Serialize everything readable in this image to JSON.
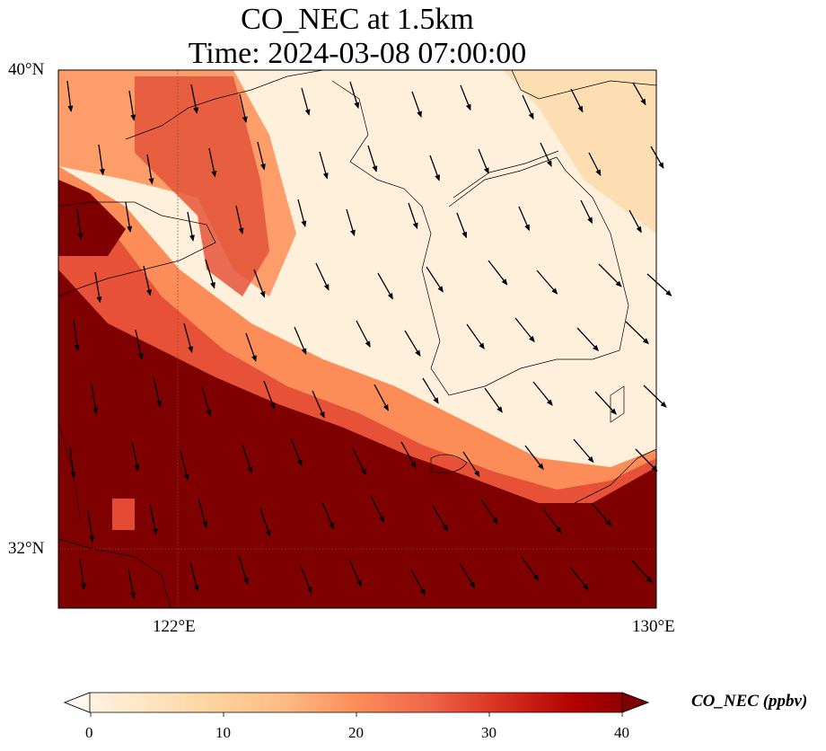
{
  "title": {
    "line1": "CO_NEC at 1.5km",
    "line2": "Time: 2024-03-08 07:00:00"
  },
  "map": {
    "variable": "CO_NEC",
    "units": "ppbv",
    "lon_range": [
      120,
      130
    ],
    "lat_range": [
      31,
      40
    ],
    "lon_ticks": [
      {
        "value": 122,
        "label": "122°E"
      },
      {
        "value": 130,
        "label": "130°E"
      }
    ],
    "lat_ticks": [
      {
        "value": 40,
        "label": "40°N"
      },
      {
        "value": 32,
        "label": "32°N"
      }
    ],
    "colormap": "OrRd",
    "wind_direction": "mostly north-northwesterly"
  },
  "colorbar": {
    "label": "CO_NEC (ppbv)",
    "min": 0,
    "max": 40,
    "ticks": [
      "0",
      "10",
      "20",
      "30",
      "40"
    ],
    "colors": [
      "#fff7ec",
      "#fee8c8",
      "#fdd49e",
      "#fdbb84",
      "#fc8d59",
      "#ef6548",
      "#d7301f",
      "#b30000",
      "#7f0000"
    ]
  }
}
